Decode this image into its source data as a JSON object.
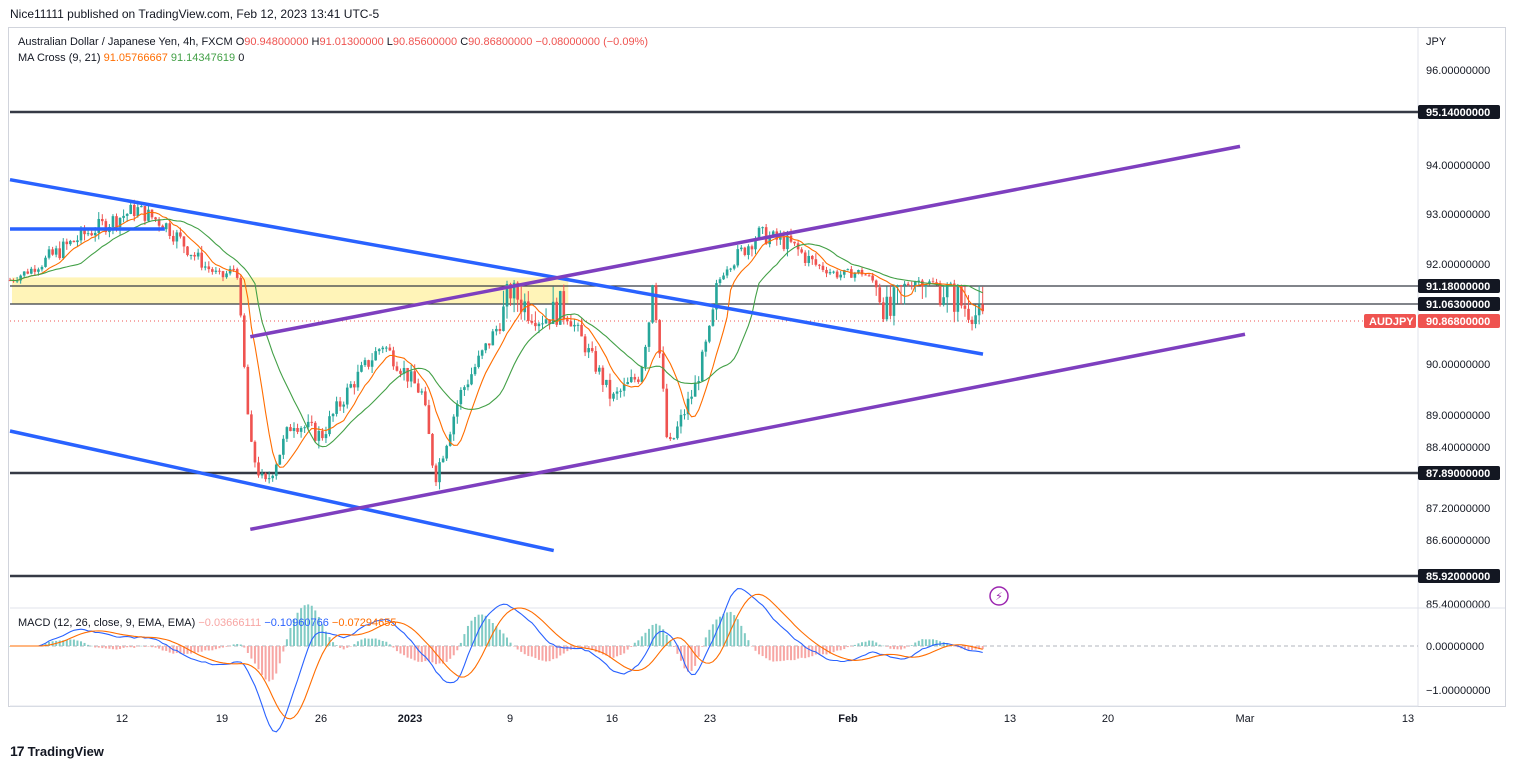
{
  "header": {
    "publisher": "Nice11111 published on TradingView.com, Feb 12, 2023 13:41 UTC-5"
  },
  "legend": {
    "symbol": "Australian Dollar / Japanese Yen, 4h, FXCM",
    "o_label": "O",
    "o_value": "90.94800000",
    "h_label": "H",
    "h_value": "91.01300000",
    "l_label": "L",
    "l_value": "90.85600000",
    "c_label": "C",
    "c_value": "90.86800000",
    "change": "−0.08000000 (−0.09%)",
    "ma_label": "MA Cross (9, 21)",
    "ma_fast": "91.05766667",
    "ma_slow": "91.14347619",
    "ma_extra": "0"
  },
  "macd_legend": {
    "label": "MACD (12, 26, close, 9, EMA, EMA)",
    "hist": "−0.03666111",
    "macd": "−0.10960766",
    "signal": "−0.07294655"
  },
  "brand": {
    "name": "TradingView"
  },
  "colors": {
    "up": "#26a69a",
    "down": "#ef5350",
    "trend_blue": "#2962ff",
    "channel_purple": "#7e3fbf",
    "ma_fast": "#ff6d00",
    "ma_slow": "#43a047",
    "macd_line": "#2962ff",
    "signal_line": "#ff6d00",
    "zone": "#fff3b0",
    "level": "#363a45"
  },
  "chart_data": {
    "type": "candlestick",
    "symbol": "AUDJPY",
    "timeframe": "4h",
    "y_axis": {
      "currency": "JPY",
      "ticks": [
        96.0,
        94.0,
        93.0,
        92.0,
        90.0,
        89.0,
        88.4,
        87.2,
        86.6,
        85.4
      ],
      "tick_labels": [
        "96.00000000",
        "94.00000000",
        "93.00000000",
        "92.00000000",
        "90.00000000",
        "89.00000000",
        "88.40000000",
        "87.20000000",
        "86.60000000",
        "85.40000000"
      ],
      "range": [
        85.3,
        97.0
      ],
      "scale": "nonlinear"
    },
    "x_axis": {
      "tick_labels": [
        "12",
        "19",
        "26",
        "2023",
        "9",
        "16",
        "23",
        "Feb",
        "13",
        "20",
        "Mar",
        "13"
      ]
    },
    "horizontal_levels": [
      {
        "price": 95.14,
        "label": "95.14000000"
      },
      {
        "price": 91.18,
        "label": "91.18000000"
      },
      {
        "price": 91.063,
        "label": "91.06300000"
      },
      {
        "price": 87.89,
        "label": "87.89000000"
      },
      {
        "price": 85.92,
        "label": "85.92000000"
      }
    ],
    "current_price": {
      "symbol": "AUDJPY",
      "price": 90.868,
      "label": "90.86800000"
    },
    "support_zone": {
      "from": 91.063,
      "to": 91.5
    },
    "trendlines": [
      {
        "name": "upper-descending-blue",
        "color": "blue",
        "points": [
          [
            "Dec 6",
            93.7
          ],
          [
            "Feb 11",
            90.2
          ]
        ]
      },
      {
        "name": "lower-descending-blue",
        "color": "blue",
        "points": [
          [
            "Dec 6",
            88.7
          ],
          [
            "Jan 12",
            86.4
          ]
        ]
      },
      {
        "name": "upper-rising-purple",
        "color": "purple",
        "points": [
          [
            "Dec 21",
            90.55
          ],
          [
            "Feb 27",
            94.4
          ]
        ]
      },
      {
        "name": "lower-rising-purple",
        "color": "purple",
        "points": [
          [
            "Dec 21",
            86.8
          ],
          [
            "Mar 1",
            90.6
          ]
        ]
      },
      {
        "name": "early-resistance-blue",
        "color": "blue",
        "points": [
          [
            "Dec 6",
            92.7
          ],
          [
            "Dec 15",
            92.7
          ]
        ]
      }
    ],
    "price_path": [
      [
        "Dec 6",
        91.4
      ],
      [
        "Dec 8",
        92.1
      ],
      [
        "Dec 10",
        92.6
      ],
      [
        "Dec 13",
        93.1
      ],
      [
        "Dec 15",
        92.8
      ],
      [
        "Dec 17",
        92.2
      ],
      [
        "Dec 19",
        91.5
      ],
      [
        "Dec 20",
        91.9
      ],
      [
        "Dec 21",
        88.4
      ],
      [
        "Dec 22",
        87.6
      ],
      [
        "Dec 24",
        88.9
      ],
      [
        "Dec 26",
        88.6
      ],
      [
        "Dec 28",
        89.6
      ],
      [
        "Dec 30",
        90.4
      ],
      [
        "Jan 2",
        89.4
      ],
      [
        "Jan 3",
        87.8
      ],
      [
        "Jan 5",
        89.4
      ],
      [
        "Jan 7",
        90.3
      ],
      [
        "Jan 9",
        91.2
      ],
      [
        "Jan 11",
        90.9
      ],
      [
        "Jan 13",
        91.0
      ],
      [
        "Jan 15",
        89.9
      ],
      [
        "Jan 16",
        89.3
      ],
      [
        "Jan 18",
        89.8
      ],
      [
        "Jan 19",
        91.5
      ],
      [
        "Jan 20",
        88.3
      ],
      [
        "Jan 22",
        89.6
      ],
      [
        "Jan 24",
        91.9
      ],
      [
        "Jan 26",
        92.6
      ],
      [
        "Jan 28",
        92.4
      ],
      [
        "Jan 31",
        91.6
      ],
      [
        "Feb 2",
        91.7
      ],
      [
        "Feb 4",
        90.9
      ],
      [
        "Feb 6",
        91.4
      ],
      [
        "Feb 8",
        91.2
      ],
      [
        "Feb 10",
        91.0
      ],
      [
        "Feb 11",
        90.87
      ]
    ],
    "macd": {
      "y_ticks": [
        0.0,
        -1.0
      ],
      "y_tick_labels": [
        "0.00000000",
        "−1.00000000"
      ]
    }
  }
}
